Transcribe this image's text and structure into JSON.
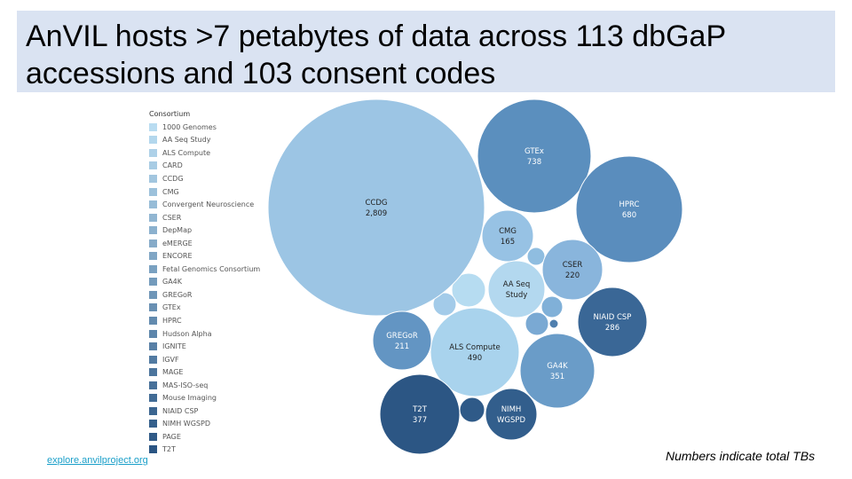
{
  "title": {
    "line1": "AnVIL hosts >7 petabytes of data across 113 dbGaP",
    "line2": "accessions and 103 consent codes"
  },
  "footer": {
    "link": "explore.anvilproject.org",
    "note": "Numbers indicate total TBs"
  },
  "chart_data": {
    "type": "packed-bubble",
    "legend": {
      "title": "Consortium",
      "placement": "left",
      "color_start": "#b9dcf1",
      "color_end": "#2a5583",
      "items": [
        "1000 Genomes",
        "AA Seq Study",
        "ALS Compute",
        "CARD",
        "CCDG",
        "CMG",
        "Convergent Neuroscience",
        "CSER",
        "DepMap",
        "eMERGE",
        "ENCORE",
        "Fetal Genomics Consortium",
        "GA4K",
        "GREGoR",
        "GTEx",
        "HPRC",
        "Hudson Alpha",
        "IGNITE",
        "IGVF",
        "MAGE",
        "MAS-ISO-seq",
        "Mouse Imaging",
        "NIAID CSP",
        "NIMH WGSPD",
        "PAGE",
        "T2T"
      ]
    },
    "bubbles": [
      {
        "name": "CCDG",
        "label": "CCDG",
        "value": "2,809",
        "color": "#9cc5e4",
        "text_color": "#222"
      },
      {
        "name": "GTEx",
        "label": "GTEx",
        "value": "738",
        "color": "#5b8fbe",
        "text_color": "#fff"
      },
      {
        "name": "HPRC",
        "label": "HPRC",
        "value": "680",
        "color": "#5a8dbd",
        "text_color": "#fff"
      },
      {
        "name": "ALS Compute",
        "label": "ALS Compute",
        "value": "490",
        "color": "#a9d3ed",
        "text_color": "#222"
      },
      {
        "name": "T2T",
        "label": "T2T",
        "value": "377",
        "color": "#2c5684",
        "text_color": "#fff"
      },
      {
        "name": "GA4K",
        "label": "GA4K",
        "value": "351",
        "color": "#6a9cc8",
        "text_color": "#fff"
      },
      {
        "name": "NIAID CSP",
        "label": "NIAID CSP",
        "value": "286",
        "color": "#3a6796",
        "text_color": "#fff"
      },
      {
        "name": "CSER",
        "label": "CSER",
        "value": "220",
        "color": "#89b5dc",
        "text_color": "#222"
      },
      {
        "name": "GREGoR",
        "label": "GREGoR",
        "value": "211",
        "color": "#6395c3",
        "text_color": "#fff"
      },
      {
        "name": "CMG",
        "label": "CMG",
        "value": "165",
        "color": "#97c2e4",
        "text_color": "#222"
      },
      {
        "name": "AA Seq Study",
        "label": "AA Seq\nStudy",
        "value": "",
        "color": "#b3d8ef",
        "text_color": "#222"
      },
      {
        "name": "NIMH WGSPD",
        "label": "NIMH\nWGSPD",
        "value": "",
        "color": "#325e8c",
        "text_color": "#fff"
      }
    ]
  }
}
